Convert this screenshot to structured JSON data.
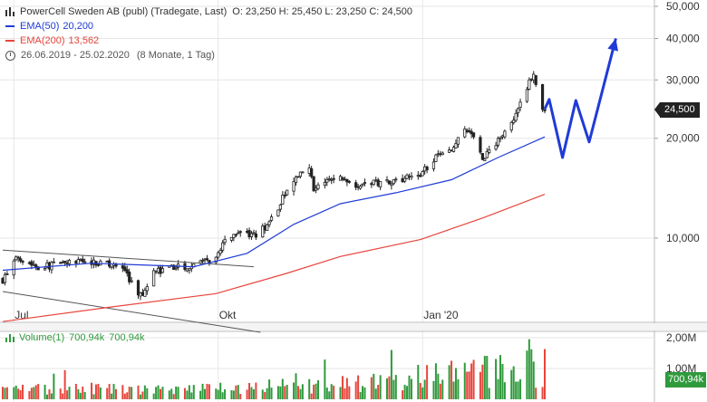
{
  "legend": {
    "title": "PowerCell Sweden AB (publ) (Tradegate, Last)",
    "ohlc": "O: 23,250  H: 25,450  L: 23,250  C: 24,500",
    "ema50_label": "EMA(50)",
    "ema50_value": "20,200",
    "ema200_label": "EMA(200)",
    "ema200_value": "13,562",
    "period": "26.06.2019 - 25.02.2020",
    "period_detail": "(8 Monate, 1 Tag)"
  },
  "price_badge": "24,500",
  "volume": {
    "label": "Volume(1)",
    "value1": "700,94k",
    "value2": "700,94k",
    "badge": "700,94k",
    "axis": [
      "2,00M",
      "1,00M"
    ]
  },
  "colors": {
    "up": "#2f9a3c",
    "down": "#e8453c",
    "ema50": "#1f3bd6",
    "ema200": "#e8453c",
    "forecast": "#1f3bd6",
    "channel": "#555555",
    "grid": "#e6e6e6"
  },
  "icons": {
    "chart_type": "candlestick-icon",
    "period": "clock-icon",
    "volume": "bar-chart-icon"
  },
  "chart_data": {
    "type": "candlestick",
    "y_scale": "log",
    "y_ticks": [
      "50,000",
      "40,000",
      "30,000",
      "20,000",
      "10,000"
    ],
    "y_tick_values": [
      50,
      40,
      30,
      20,
      10
    ],
    "x_tick_labels": [
      "Jul",
      "Okt",
      "Jan '20"
    ],
    "start_date": "2019-06-26",
    "end_date": "2020-02-25",
    "price_path": [
      [
        "2019-06-26",
        7.5
      ],
      [
        "2019-07-03",
        8.8
      ],
      [
        "2019-07-12",
        8.2
      ],
      [
        "2019-07-25",
        8.4
      ],
      [
        "2019-08-05",
        8.5
      ],
      [
        "2019-08-14",
        8.3
      ],
      [
        "2019-08-20",
        8.0
      ],
      [
        "2019-08-23",
        7.3
      ],
      [
        "2019-08-27",
        6.7
      ],
      [
        "2019-09-02",
        7.9
      ],
      [
        "2019-09-10",
        8.1
      ],
      [
        "2019-09-20",
        8.3
      ],
      [
        "2019-09-30",
        8.6
      ],
      [
        "2019-10-04",
        10.0
      ],
      [
        "2019-10-09",
        10.4
      ],
      [
        "2019-10-14",
        10.3
      ],
      [
        "2019-10-18",
        10.1
      ],
      [
        "2019-10-25",
        11.4
      ],
      [
        "2019-10-31",
        13.6
      ],
      [
        "2019-11-06",
        15.3
      ],
      [
        "2019-11-11",
        16.0
      ],
      [
        "2019-11-13",
        14.2
      ],
      [
        "2019-11-18",
        14.8
      ],
      [
        "2019-11-25",
        15.2
      ],
      [
        "2019-12-03",
        14.5
      ],
      [
        "2019-12-10",
        14.7
      ],
      [
        "2019-12-20",
        15.0
      ],
      [
        "2019-12-31",
        15.5
      ],
      [
        "2020-01-07",
        17.6
      ],
      [
        "2020-01-14",
        18.2
      ],
      [
        "2020-01-20",
        21.2
      ],
      [
        "2020-01-24",
        20.0
      ],
      [
        "2020-01-28",
        17.3
      ],
      [
        "2020-02-03",
        19.0
      ],
      [
        "2020-02-07",
        21.2
      ],
      [
        "2020-02-12",
        23.8
      ],
      [
        "2020-02-18",
        29.5
      ],
      [
        "2020-02-20",
        30.6
      ],
      [
        "2020-02-24",
        24.0
      ],
      [
        "2020-02-25",
        24.5
      ]
    ],
    "ema50": [
      [
        "2019-06-26",
        8.0
      ],
      [
        "2019-08-05",
        8.4
      ],
      [
        "2019-09-20",
        8.2
      ],
      [
        "2019-10-14",
        9.0
      ],
      [
        "2019-11-04",
        11.0
      ],
      [
        "2019-11-25",
        12.7
      ],
      [
        "2019-12-20",
        13.7
      ],
      [
        "2020-01-14",
        15.0
      ],
      [
        "2020-02-04",
        17.5
      ],
      [
        "2020-02-25",
        20.2
      ]
    ],
    "ema200": [
      [
        "2019-06-26",
        5.6
      ],
      [
        "2019-08-14",
        6.2
      ],
      [
        "2019-09-30",
        6.8
      ],
      [
        "2019-10-31",
        7.8
      ],
      [
        "2019-11-25",
        8.8
      ],
      [
        "2019-12-31",
        9.9
      ],
      [
        "2020-01-28",
        11.5
      ],
      [
        "2020-02-25",
        13.56
      ]
    ],
    "forecast_arrow": [
      [
        "2020-02-25",
        24.5
      ],
      [
        "2020-02-27",
        26.2
      ],
      [
        "2020-03-04",
        17.5
      ],
      [
        "2020-03-10",
        26.0
      ],
      [
        "2020-03-16",
        19.5
      ],
      [
        "2020-03-28",
        40.0
      ]
    ],
    "trend_channel": [
      [
        [
          "2019-06-26",
          9.2
        ],
        [
          "2019-10-17",
          8.2
        ]
      ],
      [
        [
          "2019-06-26",
          6.9
        ],
        [
          "2019-10-20",
          5.2
        ]
      ]
    ],
    "volume_axis": [
      2.0,
      1.0
    ],
    "volume_last": 0.70094
  }
}
